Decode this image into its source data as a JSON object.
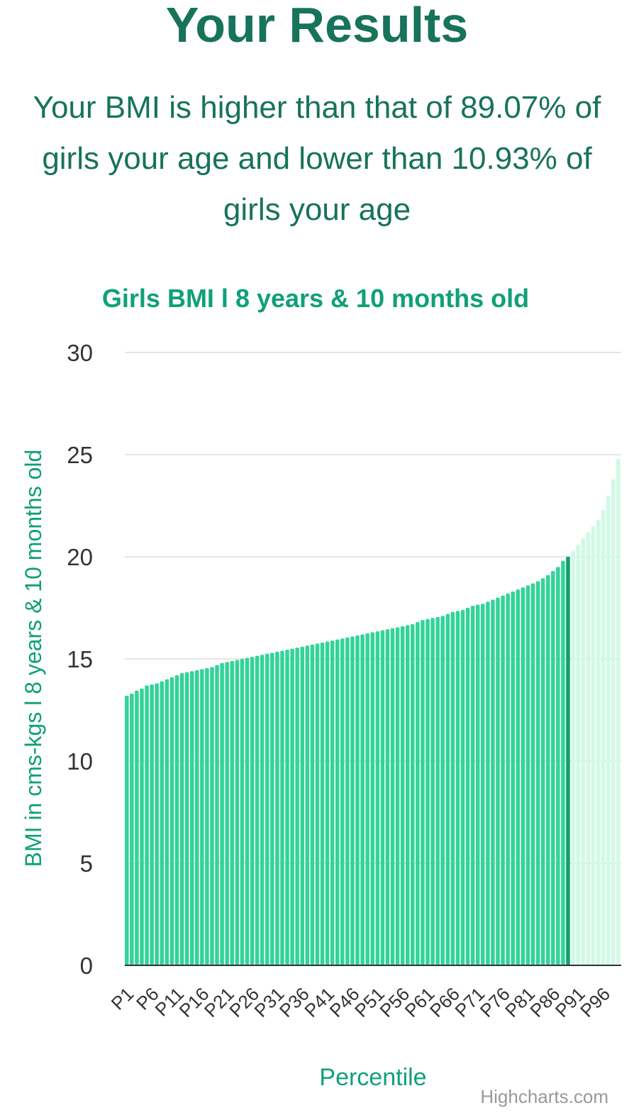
{
  "page": {
    "title": "Your Results",
    "summary_lines": [
      "Your BMI is higher than that of 89.07% of",
      "girls your age and lower than 10.93% of",
      "girls your age"
    ]
  },
  "chart_data": {
    "type": "bar",
    "title": "Girls BMI l 8 years & 10 months old",
    "xlabel": "Percentile",
    "ylabel": "BMI in cms-kgs l 8 years & 10 months old",
    "ylim": [
      0,
      30
    ],
    "yticks": [
      0,
      5,
      10,
      15,
      20,
      25,
      30
    ],
    "xtick_labels": [
      "P1",
      "P6",
      "P11",
      "P16",
      "P21",
      "P26",
      "P31",
      "P36",
      "P41",
      "P46",
      "P51",
      "P56",
      "P61",
      "P66",
      "P71",
      "P76",
      "P81",
      "P86",
      "P91",
      "P96"
    ],
    "grid": true,
    "highlight_index": 88,
    "colors": {
      "below": "#34d399",
      "highlight": "#0f9f6e",
      "above": "#d1fae5",
      "title": "#17735a",
      "axis_title": "#10a078"
    },
    "credit": "Highcharts.com",
    "categories": [
      "P1",
      "P2",
      "P3",
      "P4",
      "P5",
      "P6",
      "P7",
      "P8",
      "P9",
      "P10",
      "P11",
      "P12",
      "P13",
      "P14",
      "P15",
      "P16",
      "P17",
      "P18",
      "P19",
      "P20",
      "P21",
      "P22",
      "P23",
      "P24",
      "P25",
      "P26",
      "P27",
      "P28",
      "P29",
      "P30",
      "P31",
      "P32",
      "P33",
      "P34",
      "P35",
      "P36",
      "P37",
      "P38",
      "P39",
      "P40",
      "P41",
      "P42",
      "P43",
      "P44",
      "P45",
      "P46",
      "P47",
      "P48",
      "P49",
      "P50",
      "P51",
      "P52",
      "P53",
      "P54",
      "P55",
      "P56",
      "P57",
      "P58",
      "P59",
      "P60",
      "P61",
      "P62",
      "P63",
      "P64",
      "P65",
      "P66",
      "P67",
      "P68",
      "P69",
      "P70",
      "P71",
      "P72",
      "P73",
      "P74",
      "P75",
      "P76",
      "P77",
      "P78",
      "P79",
      "P80",
      "P81",
      "P82",
      "P83",
      "P84",
      "P85",
      "P86",
      "P87",
      "P88",
      "P89",
      "P90",
      "P91",
      "P92",
      "P93",
      "P94",
      "P95",
      "P96",
      "P97",
      "P98",
      "P99"
    ],
    "values": [
      13.2,
      13.3,
      13.45,
      13.55,
      13.7,
      13.75,
      13.8,
      13.9,
      14.0,
      14.1,
      14.2,
      14.3,
      14.35,
      14.4,
      14.45,
      14.5,
      14.55,
      14.6,
      14.7,
      14.8,
      14.85,
      14.9,
      14.95,
      15.0,
      15.05,
      15.1,
      15.15,
      15.2,
      15.25,
      15.3,
      15.35,
      15.4,
      15.45,
      15.5,
      15.55,
      15.6,
      15.65,
      15.7,
      15.75,
      15.8,
      15.85,
      15.9,
      15.95,
      16.0,
      16.05,
      16.1,
      16.15,
      16.2,
      16.25,
      16.3,
      16.35,
      16.4,
      16.45,
      16.5,
      16.55,
      16.6,
      16.65,
      16.7,
      16.8,
      16.9,
      16.95,
      17.0,
      17.05,
      17.1,
      17.2,
      17.3,
      17.35,
      17.4,
      17.5,
      17.6,
      17.65,
      17.7,
      17.8,
      17.9,
      18.0,
      18.1,
      18.2,
      18.3,
      18.4,
      18.5,
      18.6,
      18.7,
      18.8,
      18.95,
      19.1,
      19.3,
      19.5,
      19.8,
      20.0,
      20.3,
      20.6,
      20.9,
      21.2,
      21.5,
      21.8,
      22.3,
      23.0,
      23.8,
      24.8
    ]
  }
}
